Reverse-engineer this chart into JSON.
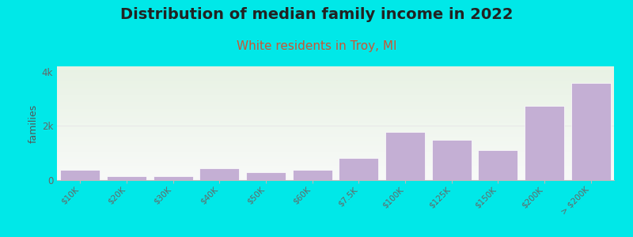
{
  "title": "Distribution of median family income in 2022",
  "subtitle": "White residents in Troy, MI",
  "ylabel": "families",
  "categories": [
    "$10K",
    "$20K",
    "$30K",
    "$40K",
    "$50K",
    "$60K",
    "$7.5K",
    "$100K",
    "$125K",
    "$150K",
    "$200K",
    "> $200K"
  ],
  "values": [
    370,
    140,
    155,
    430,
    300,
    370,
    830,
    1780,
    1480,
    1100,
    2750,
    3600
  ],
  "bar_color": "#c4afd4",
  "bar_edgecolor": "#ffffff",
  "background_color": "#00e8e8",
  "plot_bg_top_color": "#e8f2e4",
  "plot_bg_bottom_color": "#f8faf8",
  "title_fontsize": 14,
  "subtitle_fontsize": 11,
  "subtitle_color": "#cc5533",
  "ylabel_color": "#555555",
  "tick_color": "#666666",
  "grid_color": "#e8e8e8",
  "ylim": [
    0,
    4200
  ],
  "yticks": [
    0,
    2000,
    4000
  ],
  "ytick_labels": [
    "0",
    "2k",
    "4k"
  ]
}
